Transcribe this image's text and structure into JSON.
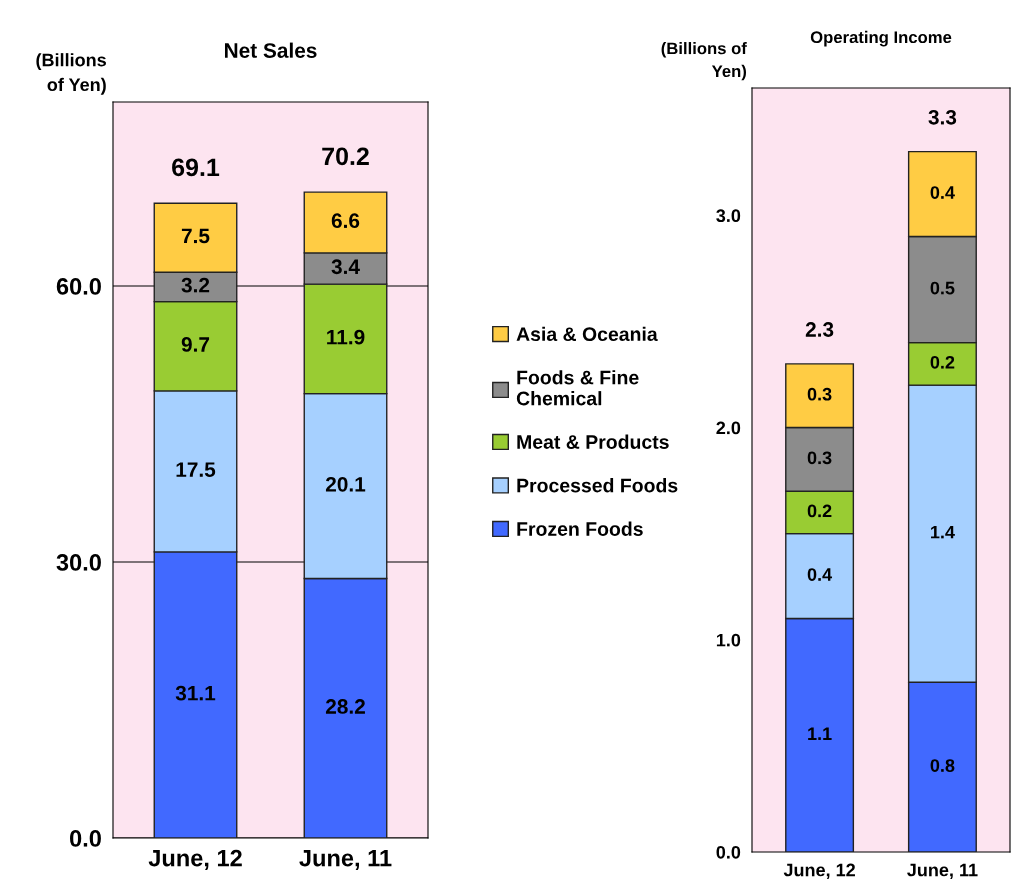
{
  "chart_data": [
    {
      "type": "bar",
      "title": "Net Sales",
      "ylabel": "(Billions\nof Yen)",
      "categories": [
        "June, 12",
        "June, 11"
      ],
      "stacked": true,
      "series": [
        {
          "name": "Frozen Foods",
          "color": "#4169ff",
          "values": [
            31.1,
            28.2
          ]
        },
        {
          "name": "Processed Foods",
          "color": "#a6d0ff",
          "values": [
            17.5,
            20.1
          ]
        },
        {
          "name": "Meat & Products",
          "color": "#99cc33",
          "values": [
            9.7,
            11.9
          ]
        },
        {
          "name": "Foods & Fine\nChemical",
          "color": "#8c8c8c",
          "values": [
            3.2,
            3.4
          ]
        },
        {
          "name": "Asia & Oceania",
          "color": "#ffcc44",
          "values": [
            7.5,
            6.6
          ]
        }
      ],
      "ylim": [
        0,
        80
      ],
      "yticks": [
        {
          "value": 0,
          "label": "0.0"
        },
        {
          "value": 30,
          "label": "30.0"
        },
        {
          "value": 60,
          "label": "60.0"
        }
      ],
      "grid": "y",
      "data_labels": true,
      "totals": [
        "69.1",
        "70.2"
      ],
      "legend": "right"
    },
    {
      "type": "bar",
      "title": "Operating Income",
      "ylabel": "(Billions of\nYen)",
      "categories": [
        "June, 12",
        "June, 11"
      ],
      "stacked": true,
      "series": [
        {
          "color": "#4169ff",
          "values": [
            1.1,
            0.8
          ]
        },
        {
          "color": "#a6d0ff",
          "values": [
            0.4,
            1.4
          ]
        },
        {
          "color": "#99cc33",
          "values": [
            0.2,
            0.2
          ]
        },
        {
          "color": "#8c8c8c",
          "values": [
            0.3,
            0.5
          ]
        },
        {
          "color": "#ffcc44",
          "values": [
            0.3,
            0.4
          ]
        }
      ],
      "ylim": [
        0,
        3.6
      ],
      "yticks": [
        {
          "value": 0,
          "label": "0.0"
        },
        {
          "value": 1,
          "label": "1.0"
        },
        {
          "value": 2,
          "label": "2.0"
        },
        {
          "value": 3,
          "label": "3.0"
        }
      ],
      "data_labels": true,
      "totals": [
        "2.3",
        "3.3"
      ]
    }
  ]
}
